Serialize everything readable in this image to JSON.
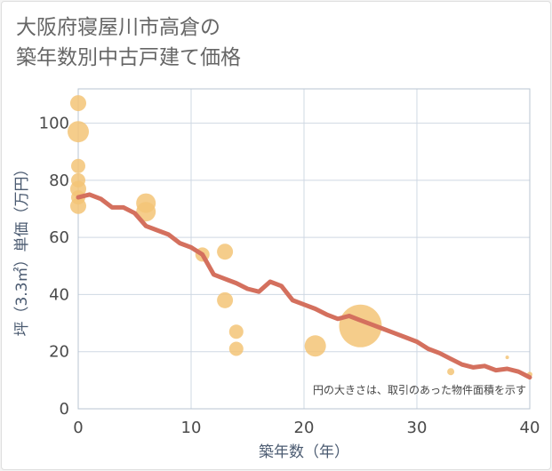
{
  "title": "大阪府寝屋川市高倉の\n築年数別中古戸建て価格",
  "chart_data": {
    "type": "scatter",
    "xlabel": "築年数（年）",
    "ylabel": "坪（3.3㎡）単価（万円）",
    "xlim": [
      0,
      40
    ],
    "ylim": [
      0,
      112
    ],
    "xticks": [
      0,
      10,
      20,
      30,
      40
    ],
    "yticks": [
      0,
      20,
      40,
      60,
      80,
      100
    ],
    "grid": true,
    "annotation": "円の大きさは、取引のあった物件面積を示す",
    "colors": {
      "bubble": "#f3c477",
      "line": "#d4705e",
      "grid": "#cfd8e3"
    },
    "bubbles": [
      {
        "x": 0,
        "y": 107,
        "size": 9
      },
      {
        "x": 0,
        "y": 97,
        "size": 12
      },
      {
        "x": 0,
        "y": 85,
        "size": 8
      },
      {
        "x": 0,
        "y": 80,
        "size": 8
      },
      {
        "x": 0,
        "y": 77,
        "size": 9
      },
      {
        "x": 0,
        "y": 74,
        "size": 8
      },
      {
        "x": 0,
        "y": 71,
        "size": 9
      },
      {
        "x": 6,
        "y": 72,
        "size": 11
      },
      {
        "x": 6,
        "y": 69,
        "size": 11
      },
      {
        "x": 11,
        "y": 54,
        "size": 8
      },
      {
        "x": 13,
        "y": 55,
        "size": 9
      },
      {
        "x": 13,
        "y": 38,
        "size": 9
      },
      {
        "x": 14,
        "y": 27,
        "size": 8
      },
      {
        "x": 14,
        "y": 21,
        "size": 8
      },
      {
        "x": 21,
        "y": 22,
        "size": 12
      },
      {
        "x": 25,
        "y": 29,
        "size": 24
      },
      {
        "x": 33,
        "y": 13,
        "size": 4
      },
      {
        "x": 38,
        "y": 18,
        "size": 2
      },
      {
        "x": 40,
        "y": 12,
        "size": 3
      }
    ],
    "trend": {
      "x": [
        0,
        1,
        2,
        3,
        4,
        5,
        6,
        7,
        8,
        9,
        10,
        11,
        12,
        13,
        14,
        15,
        16,
        17,
        18,
        19,
        20,
        21,
        22,
        23,
        24,
        25,
        26,
        27,
        28,
        29,
        30,
        31,
        32,
        33,
        34,
        35,
        36,
        37,
        38,
        39,
        40
      ],
      "y": [
        74,
        75,
        73.5,
        70.5,
        70.5,
        68.5,
        64,
        62.5,
        61,
        58,
        56.5,
        54,
        47,
        45.5,
        44,
        42,
        41,
        44.5,
        43,
        38,
        36.5,
        35,
        33,
        31.5,
        32.5,
        31,
        29.5,
        28,
        26.5,
        25,
        23.5,
        21,
        19.5,
        17.5,
        15.5,
        14.5,
        15,
        13.5,
        14,
        13,
        11
      ]
    }
  }
}
